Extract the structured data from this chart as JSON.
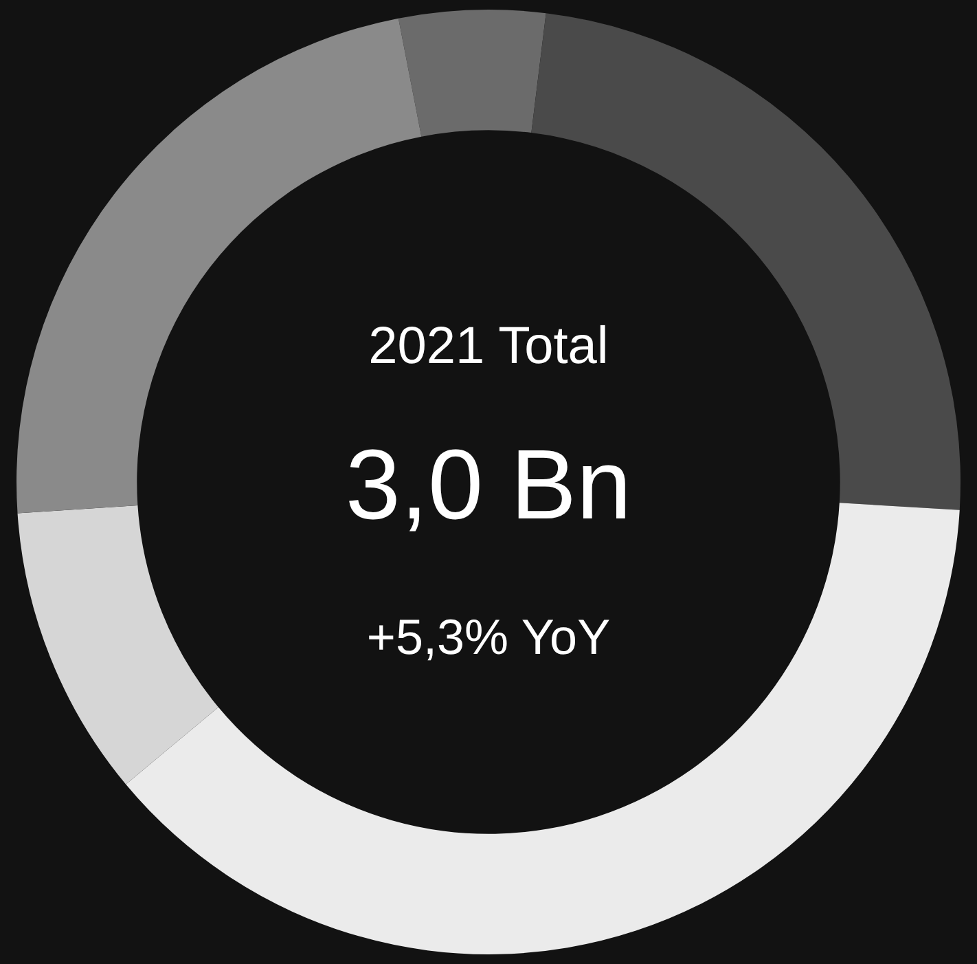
{
  "chart_data": {
    "type": "donut",
    "title": "3,0 Bn",
    "subtitle": "2021 Total",
    "annotations": [
      "+5,3% YoY"
    ],
    "categories": [
      null,
      null,
      null,
      null,
      null
    ],
    "values": [
      5,
      24,
      38,
      10,
      23
    ],
    "colors": [
      "#6b6b6b",
      "#4a4a4a",
      "#ebebeb",
      "#d6d6d6",
      "#8a8a8a"
    ]
  }
}
